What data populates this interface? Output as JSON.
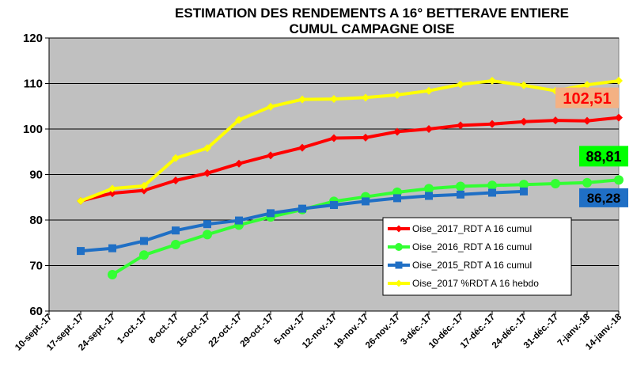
{
  "chart_data": {
    "type": "line",
    "title": "ESTIMATION DES RENDEMENTS A 16° BETTERAVE ENTIERE",
    "subtitle": "CUMUL CAMPAGNE OISE",
    "xlabel": "",
    "ylabel": "",
    "ylim": [
      60,
      120
    ],
    "yticks": [
      "60",
      "70",
      "80",
      "90",
      "100",
      "110",
      "120"
    ],
    "grid": true,
    "legend_position": "center-right",
    "categories": [
      "10-sept.-17",
      "17-sept.-17",
      "24-sept.-17",
      "1-oct.-17",
      "8-oct.-17",
      "15-oct.-17",
      "22-oct.-17",
      "29-oct.-17",
      "5-nov.-17",
      "12-nov.-17",
      "19-nov.-17",
      "26-nov.-17",
      "3-déc.-17",
      "10-déc.-17",
      "17-déc.-17",
      "24-déc.-17",
      "31-déc.-17",
      "7-janv.-18",
      "14-janv.-18"
    ],
    "series": [
      {
        "name": "Oise_2017_RDT A 16 cumul",
        "color": "#ff0000",
        "marker": "diamond",
        "values": [
          null,
          84.2,
          85.9,
          86.5,
          88.7,
          90.3,
          92.4,
          94.2,
          95.9,
          98.0,
          98.1,
          99.4,
          100.0,
          100.8,
          101.1,
          101.6,
          101.9,
          101.8,
          102.51
        ],
        "end_label": "102,51",
        "end_label_bg": "#f4b183",
        "end_label_color": "#ff0000"
      },
      {
        "name": "Oise_2016_RDT A 16 cumul",
        "color": "#33ff33",
        "marker": "circle",
        "values": [
          null,
          null,
          68.0,
          72.3,
          74.6,
          76.8,
          78.9,
          80.7,
          82.3,
          84.1,
          85.1,
          86.1,
          86.9,
          87.4,
          87.6,
          87.8,
          88.0,
          88.2,
          88.81
        ],
        "end_label": "88,81",
        "end_label_bg": "#00ff00",
        "end_label_color": "#000000"
      },
      {
        "name": "Oise_2015_RDT A 16 cumul",
        "color": "#1f6fc5",
        "marker": "square",
        "values": [
          null,
          73.2,
          73.8,
          75.4,
          77.7,
          79.1,
          79.9,
          81.5,
          82.5,
          83.3,
          84.1,
          84.8,
          85.3,
          85.6,
          86.0,
          86.28,
          null,
          null,
          null
        ],
        "end_label": "86,28",
        "end_label_bg": "#1f6fc5",
        "end_label_color": "#000000"
      },
      {
        "name": "Oise_2017 %RDT A 16 hebdo",
        "color": "#ffff00",
        "marker": "diamond",
        "values": [
          null,
          84.2,
          86.9,
          87.5,
          93.6,
          95.8,
          102.0,
          104.9,
          106.5,
          106.6,
          106.9,
          107.5,
          108.4,
          109.8,
          110.6,
          109.6,
          108.4,
          109.7,
          110.6
        ]
      }
    ]
  }
}
